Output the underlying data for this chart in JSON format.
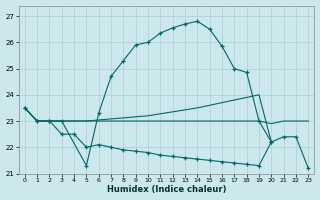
{
  "xlabel": "Humidex (Indice chaleur)",
  "bg_color": "#cce8ec",
  "grid_color": "#aacdd4",
  "line_color": "#006868",
  "xlim": [
    -0.5,
    23.5
  ],
  "ylim": [
    21.0,
    27.4
  ],
  "yticks": [
    21,
    22,
    23,
    24,
    25,
    26,
    27
  ],
  "xticks": [
    0,
    1,
    2,
    3,
    4,
    5,
    6,
    7,
    8,
    9,
    10,
    11,
    12,
    13,
    14,
    15,
    16,
    17,
    18,
    19,
    20,
    21,
    22,
    23
  ],
  "line1_x": [
    0,
    1,
    2,
    3,
    5,
    6,
    7,
    8,
    9,
    10,
    11,
    12,
    13,
    14,
    15,
    16,
    17,
    18,
    19,
    20
  ],
  "line1_y": [
    23.5,
    23.0,
    23.0,
    23.0,
    21.3,
    23.3,
    24.7,
    25.3,
    25.9,
    26.0,
    26.35,
    26.55,
    26.7,
    26.8,
    26.5,
    25.85,
    25.0,
    24.85,
    23.0,
    22.2
  ],
  "line2_x": [
    0,
    1,
    3,
    5,
    10,
    14,
    19,
    20
  ],
  "line2_y": [
    23.5,
    23.0,
    23.0,
    23.0,
    23.2,
    23.5,
    24.0,
    22.2
  ],
  "line3_x": [
    0,
    1,
    2,
    3,
    4,
    5,
    6,
    7,
    8,
    9,
    10,
    11,
    12,
    13,
    14,
    15,
    16,
    17,
    18,
    19,
    20,
    21,
    22,
    23
  ],
  "line3_y": [
    23.5,
    23.0,
    23.0,
    23.0,
    23.0,
    23.0,
    23.0,
    23.0,
    23.0,
    23.0,
    23.0,
    23.0,
    23.0,
    23.0,
    23.0,
    23.0,
    23.0,
    23.0,
    23.0,
    23.0,
    22.9,
    23.0,
    23.0,
    23.0
  ],
  "line4_x": [
    0,
    1,
    2,
    3,
    4,
    5,
    6,
    7,
    8,
    9,
    10,
    11,
    12,
    13,
    14,
    15,
    16,
    17,
    18,
    19,
    20,
    21,
    22,
    23
  ],
  "line4_y": [
    23.5,
    23.0,
    23.0,
    22.5,
    22.5,
    22.0,
    22.1,
    22.0,
    21.9,
    21.85,
    21.8,
    21.7,
    21.65,
    21.6,
    21.55,
    21.5,
    21.45,
    21.4,
    21.35,
    21.3,
    22.2,
    22.4,
    22.4,
    21.2
  ]
}
